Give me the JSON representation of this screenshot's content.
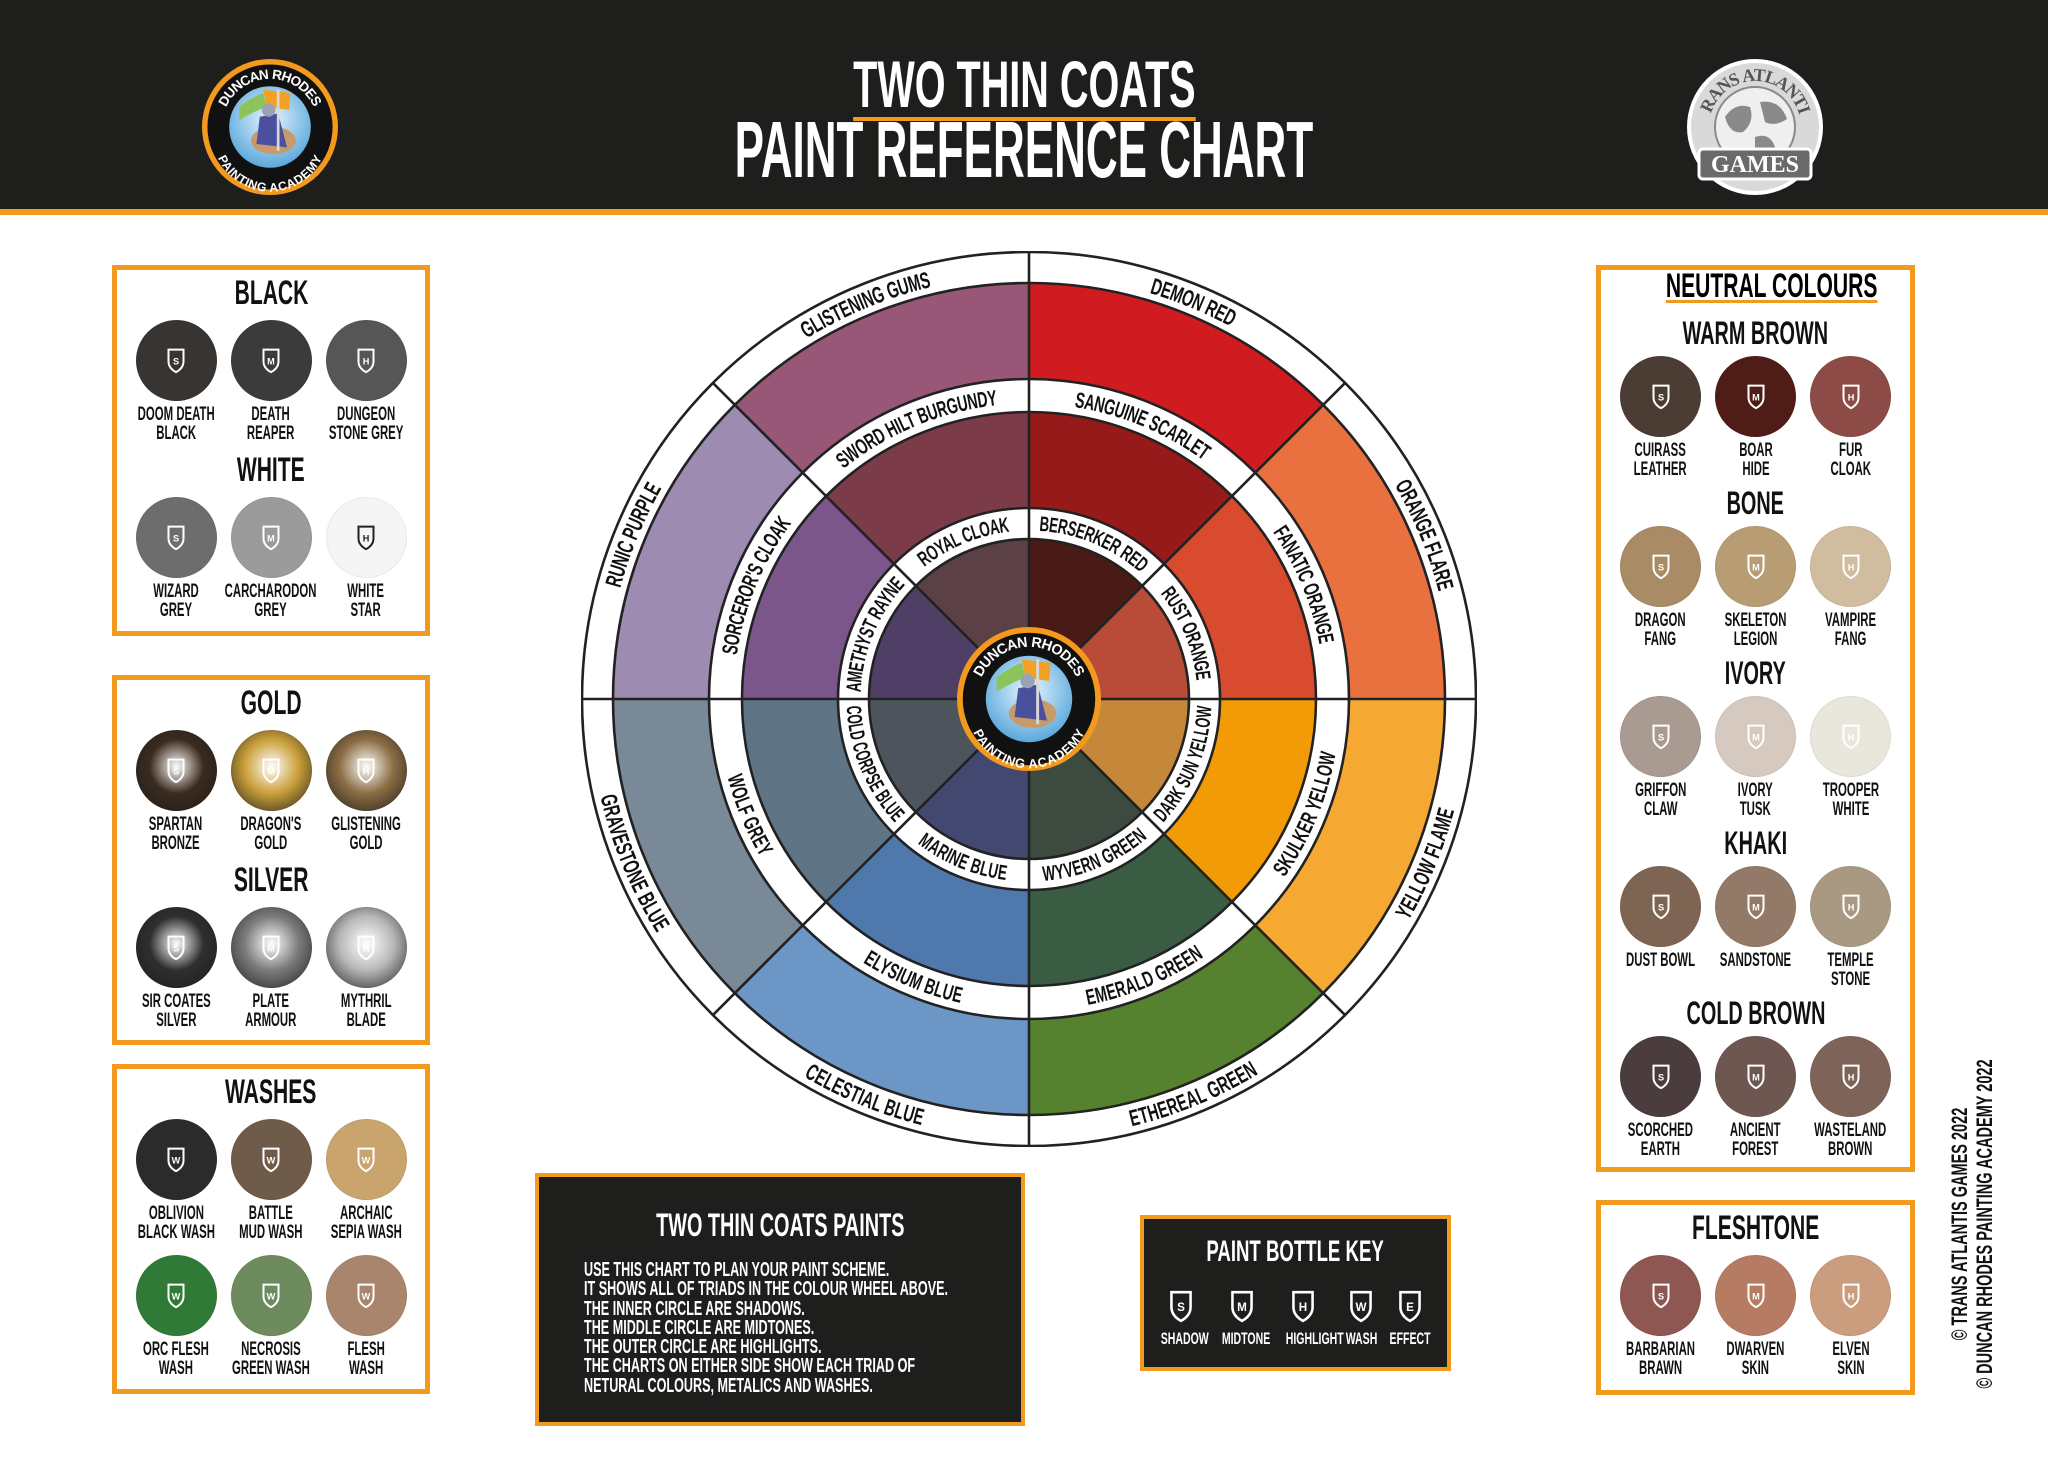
{
  "header": {
    "title_line1": "TWO THIN COATS",
    "title_line2": "PAINT REFERENCE CHART",
    "left_logo_text": [
      "DUNCAN RHODES",
      "PAINTING ACADEMY"
    ],
    "right_logo_text": [
      "TRANS ATLANTIS",
      "GAMES"
    ]
  },
  "colors": {
    "accent": "#f39a1e",
    "dark": "#1e1e1c",
    "background": "#ffffff"
  },
  "left_panels": [
    {
      "sections": [
        {
          "title": "BLACK",
          "rows": [
            [
              {
                "name": [
                  "DOOM DEATH",
                  "BLACK"
                ],
                "color": "#373432",
                "type": "S"
              },
              {
                "name": [
                  "DEATH",
                  "REAPER"
                ],
                "color": "#3c3b3b",
                "type": "M"
              },
              {
                "name": [
                  "DUNGEON",
                  "STONE GREY"
                ],
                "color": "#565657",
                "type": "H"
              }
            ]
          ]
        },
        {
          "title": "WHITE",
          "rows": [
            [
              {
                "name": [
                  "WIZARD",
                  "GREY"
                ],
                "color": "#6d6d6d",
                "type": "S"
              },
              {
                "name": [
                  "CARCHARODON",
                  "GREY"
                ],
                "color": "#9b9b9b",
                "type": "M"
              },
              {
                "name": [
                  "WHITE",
                  "STAR"
                ],
                "color": "#f5f5f5",
                "type": "H",
                "icon_dark": true
              }
            ]
          ]
        }
      ]
    },
    {
      "sections": [
        {
          "title": "GOLD",
          "rows": [
            [
              {
                "name": [
                  "SPARTAN",
                  "BRONZE"
                ],
                "color": "#3b2b1f",
                "type": "S",
                "finish": "metallic"
              },
              {
                "name": [
                  "DRAGON'S",
                  "GOLD"
                ],
                "color": "#caa03a",
                "type": "M",
                "finish": "metallic"
              },
              {
                "name": [
                  "GLISTENING",
                  "GOLD"
                ],
                "color": "#8c6e44",
                "type": "H",
                "finish": "metallic"
              }
            ]
          ]
        },
        {
          "title": "SILVER",
          "rows": [
            [
              {
                "name": [
                  "SIR COATES",
                  "SILVER"
                ],
                "color": "#2f2f2f",
                "type": "S",
                "finish": "metallic"
              },
              {
                "name": [
                  "PLATE",
                  "ARMOUR"
                ],
                "color": "#7c7c7c",
                "type": "M",
                "finish": "metallic"
              },
              {
                "name": [
                  "MYTHRIL",
                  "BLADE"
                ],
                "color": "#b8b8b8",
                "type": "H",
                "finish": "metallic"
              }
            ]
          ]
        }
      ]
    },
    {
      "sections": [
        {
          "title": "WASHES",
          "rows": [
            [
              {
                "name": [
                  "OBLIVION",
                  "BLACK WASH"
                ],
                "color": "#2c2b2b",
                "type": "W"
              },
              {
                "name": [
                  "BATTLE",
                  "MUD WASH"
                ],
                "color": "#6f5b49",
                "type": "W"
              },
              {
                "name": [
                  "ARCHAIC",
                  "SEPIA WASH"
                ],
                "color": "#c9a56d",
                "type": "W"
              }
            ],
            [
              {
                "name": [
                  "ORC FLESH",
                  "WASH"
                ],
                "color": "#2e7a36",
                "type": "W"
              },
              {
                "name": [
                  "NECROSIS",
                  "GREEN WASH"
                ],
                "color": "#6e8a5f",
                "type": "W"
              },
              {
                "name": [
                  "FLESH",
                  "WASH"
                ],
                "color": "#a9856d",
                "type": "W"
              }
            ]
          ]
        }
      ]
    }
  ],
  "right_panels": [
    {
      "title": "NEUTRAL COLOURS",
      "sections": [
        {
          "title": "WARM BROWN",
          "rows": [
            [
              {
                "name": [
                  "CUIRASS",
                  "LEATHER"
                ],
                "color": "#4b3d33",
                "type": "S"
              },
              {
                "name": [
                  "BOAR",
                  "HIDE"
                ],
                "color": "#4f1c17",
                "type": "M"
              },
              {
                "name": [
                  "FUR",
                  "CLOAK"
                ],
                "color": "#8c4b46",
                "type": "H"
              }
            ]
          ]
        },
        {
          "title": "BONE",
          "rows": [
            [
              {
                "name": [
                  "DRAGON",
                  "FANG"
                ],
                "color": "#a98b65",
                "type": "S"
              },
              {
                "name": [
                  "SKELETON",
                  "LEGION"
                ],
                "color": "#b89c73",
                "type": "M"
              },
              {
                "name": [
                  "VAMPIRE",
                  "FANG"
                ],
                "color": "#d0bc9f",
                "type": "H"
              }
            ]
          ]
        },
        {
          "title": "IVORY",
          "rows": [
            [
              {
                "name": [
                  "GRIFFON",
                  "CLAW"
                ],
                "color": "#a99b91",
                "type": "S"
              },
              {
                "name": [
                  "IVORY",
                  "TUSK"
                ],
                "color": "#d5c9c0",
                "type": "M"
              },
              {
                "name": [
                  "TROOPER",
                  "WHITE"
                ],
                "color": "#e9e7db",
                "type": "H"
              }
            ]
          ]
        },
        {
          "title": "KHAKI",
          "rows": [
            [
              {
                "name": [
                  "DUST BOWL"
                ],
                "color": "#7e6453",
                "type": "S"
              },
              {
                "name": [
                  "SANDSTONE"
                ],
                "color": "#937967",
                "type": "M"
              },
              {
                "name": [
                  "TEMPLE",
                  "STONE"
                ],
                "color": "#a99983",
                "type": "H"
              }
            ]
          ]
        },
        {
          "title": "COLD BROWN",
          "rows": [
            [
              {
                "name": [
                  "SCORCHED",
                  "EARTH"
                ],
                "color": "#4b3d3d",
                "type": "S"
              },
              {
                "name": [
                  "ANCIENT",
                  "FOREST"
                ],
                "color": "#6e5751",
                "type": "M"
              },
              {
                "name": [
                  "WASTELAND",
                  "BROWN"
                ],
                "color": "#7e6359",
                "type": "H"
              }
            ]
          ]
        }
      ]
    },
    {
      "title": "",
      "sections": [
        {
          "title": "FLESHTONE",
          "rows": [
            [
              {
                "name": [
                  "BARBARIAN",
                  "BRAWN"
                ],
                "color": "#8f5751",
                "type": "S"
              },
              {
                "name": [
                  "DWARVEN",
                  "SKIN"
                ],
                "color": "#b67b63",
                "type": "M"
              },
              {
                "name": [
                  "ELVEN",
                  "SKIN"
                ],
                "color": "#c99d7d",
                "type": "H"
              }
            ]
          ]
        }
      ]
    }
  ],
  "wheel": {
    "rings": [
      "highlight (outer)",
      "midtone (middle)",
      "shadow (inner)"
    ],
    "sectors": [
      {
        "outer": {
          "name": "DEMON RED",
          "color": "#d01b20"
        },
        "middle": {
          "name": "SANGUINE SCARLET",
          "color": "#961a1a"
        },
        "inner": {
          "name": "BERSERKER RED",
          "color": "#4a1a17"
        }
      },
      {
        "outer": {
          "name": "ORANGE FLARE",
          "color": "#e9703f"
        },
        "middle": {
          "name": "FANATIC ORANGE",
          "color": "#d94b2f"
        },
        "inner": {
          "name": "RUST ORANGE",
          "color": "#b94b39"
        }
      },
      {
        "outer": {
          "name": "YELLOW FLAME",
          "color": "#f5a932"
        },
        "middle": {
          "name": "SKULKER YELLOW",
          "color": "#f29b06"
        },
        "inner": {
          "name": "DARK SUN YELLOW",
          "color": "#c58739"
        }
      },
      {
        "outer": {
          "name": "ETHEREAL GREEN",
          "color": "#56822f"
        },
        "middle": {
          "name": "EMERALD GREEN",
          "color": "#3a5c43"
        },
        "inner": {
          "name": "WYVERN GREEN",
          "color": "#3c4a40"
        }
      },
      {
        "outer": {
          "name": "CELESTIAL BLUE",
          "color": "#6b96c5"
        },
        "middle": {
          "name": "ELYSIUM BLUE",
          "color": "#4f78ac"
        },
        "inner": {
          "name": "MARINE BLUE",
          "color": "#434871"
        }
      },
      {
        "outer": {
          "name": "GRAVESTONE BLUE",
          "color": "#7a8997"
        },
        "middle": {
          "name": "WOLF GREY",
          "color": "#5f7485"
        },
        "inner": {
          "name": "COLD CORPSE BLUE",
          "color": "#4e545c"
        }
      },
      {
        "outer": {
          "name": "RUNIC PURPLE",
          "color": "#9d8bb2"
        },
        "middle": {
          "name": "SORCEROR'S CLOAK",
          "color": "#7a568a"
        },
        "inner": {
          "name": "AMETHYST RAYNE",
          "color": "#4f3f67"
        }
      },
      {
        "outer": {
          "name": "GLISTENING GUMS",
          "color": "#995778"
        },
        "middle": {
          "name": "SWORD HILT BURGUNDY",
          "color": "#7b3b48"
        },
        "inner": {
          "name": "ROYAL CLOAK",
          "color": "#5b4046"
        }
      }
    ],
    "center_logo_text": [
      "DUNCAN RHODES",
      "PAINTING ACADEMY"
    ]
  },
  "info_box": {
    "title": "TWO THIN COATS PAINTS",
    "lines": [
      "USE THIS CHART TO PLAN YOUR PAINT SCHEME.",
      "IT SHOWS ALL OF TRIADS IN THE COLOUR WHEEL ABOVE.",
      "THE INNER CIRCLE ARE SHADOWS.",
      "THE MIDDLE CIRCLE ARE MIDTONES.",
      "THE OUTER CIRCLE ARE HIGHLIGHTS.",
      "THE CHARTS ON EITHER SIDE SHOW EACH TRIAD OF",
      "NETURAL COLOURS, METALICS AND WASHES."
    ]
  },
  "key_box": {
    "title": "PAINT BOTTLE KEY",
    "items": [
      {
        "letter": "S",
        "label": "SHADOW"
      },
      {
        "letter": "M",
        "label": "MIDTONE"
      },
      {
        "letter": "H",
        "label": "HIGHLIGHT"
      },
      {
        "letter": "W",
        "label": "WASH"
      },
      {
        "letter": "E",
        "label": "EFFECT"
      }
    ]
  },
  "copyright": [
    "© TRANS ATLANTIS GAMES 2022",
    "© DUNCAN RHODES PAINTING ACADEMY 2022"
  ]
}
